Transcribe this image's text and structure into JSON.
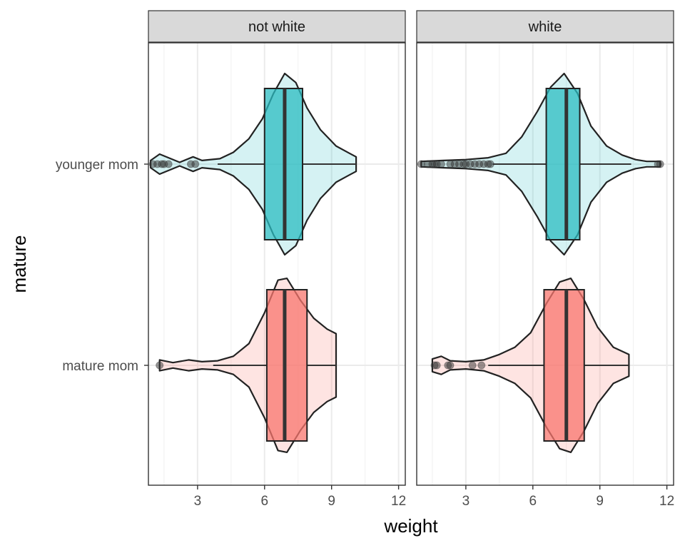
{
  "chart_data": {
    "type": "violin",
    "overlay": [
      "boxplot",
      "points"
    ],
    "facets": [
      "not white",
      "white"
    ],
    "xlabel": "weight",
    "ylabel": "mature",
    "categories": [
      "younger mom",
      "mature mom"
    ],
    "xlim": [
      0.8,
      12.3
    ],
    "xticks": [
      3,
      6,
      9,
      12
    ],
    "grid": true,
    "theme": "bw",
    "colors": {
      "younger mom": "#2bbcc2",
      "mature mom": "#f8766d"
    },
    "groups": [
      {
        "facet": "not white",
        "category": "younger mom",
        "box": {
          "whisker_low": 3.9,
          "q1": 6.0,
          "median": 6.9,
          "q3": 7.7,
          "whisker_high": 10.1
        },
        "outliers": [
          1.0,
          1.2,
          1.4,
          1.5,
          1.7,
          2.7,
          2.9
        ],
        "density": [
          [
            0.9,
            0.04
          ],
          [
            1.3,
            0.11
          ],
          [
            1.8,
            0.06
          ],
          [
            2.2,
            0.02
          ],
          [
            2.8,
            0.08
          ],
          [
            3.2,
            0.04
          ],
          [
            4.0,
            0.06
          ],
          [
            4.6,
            0.13
          ],
          [
            5.3,
            0.28
          ],
          [
            5.9,
            0.5
          ],
          [
            6.4,
            0.78
          ],
          [
            6.9,
            1.0
          ],
          [
            7.4,
            0.9
          ],
          [
            7.9,
            0.62
          ],
          [
            8.5,
            0.38
          ],
          [
            9.2,
            0.2
          ],
          [
            9.8,
            0.12
          ],
          [
            10.1,
            0.08
          ]
        ]
      },
      {
        "facet": "not white",
        "category": "mature mom",
        "box": {
          "whisker_low": 3.7,
          "q1": 6.1,
          "median": 6.9,
          "q3": 7.9,
          "whisker_high": 9.2
        },
        "outliers": [
          1.3
        ],
        "density": [
          [
            1.3,
            0.06
          ],
          [
            1.9,
            0.03
          ],
          [
            2.6,
            0.06
          ],
          [
            3.2,
            0.04
          ],
          [
            3.9,
            0.05
          ],
          [
            4.6,
            0.1
          ],
          [
            5.3,
            0.24
          ],
          [
            6.0,
            0.58
          ],
          [
            6.6,
            0.94
          ],
          [
            7.0,
            0.96
          ],
          [
            7.6,
            0.72
          ],
          [
            8.2,
            0.52
          ],
          [
            8.8,
            0.4
          ],
          [
            9.2,
            0.35
          ]
        ]
      },
      {
        "facet": "white",
        "category": "younger mom",
        "box": {
          "whisker_low": 4.2,
          "q1": 6.6,
          "median": 7.5,
          "q3": 8.1,
          "whisker_high": 10.4
        },
        "outliers": [
          1.0,
          1.3,
          1.5,
          1.6,
          1.7,
          1.9,
          2.3,
          2.5,
          2.7,
          2.9,
          3.0,
          3.2,
          3.4,
          3.6,
          3.8,
          4.0,
          4.1,
          11.6,
          11.7
        ],
        "density": [
          [
            1.0,
            0.03
          ],
          [
            2.0,
            0.04
          ],
          [
            3.0,
            0.05
          ],
          [
            4.0,
            0.07
          ],
          [
            4.8,
            0.12
          ],
          [
            5.5,
            0.3
          ],
          [
            6.2,
            0.58
          ],
          [
            6.8,
            0.85
          ],
          [
            7.4,
            1.0
          ],
          [
            8.0,
            0.78
          ],
          [
            8.6,
            0.42
          ],
          [
            9.3,
            0.2
          ],
          [
            10.0,
            0.1
          ],
          [
            10.6,
            0.05
          ],
          [
            11.1,
            0.03
          ],
          [
            11.7,
            0.03
          ]
        ]
      },
      {
        "facet": "white",
        "category": "mature mom",
        "box": {
          "whisker_low": 4.0,
          "q1": 6.5,
          "median": 7.5,
          "q3": 8.3,
          "whisker_high": 10.3
        },
        "outliers": [
          1.6,
          1.7,
          2.2,
          2.3,
          3.3,
          3.7
        ],
        "density": [
          [
            1.5,
            0.07
          ],
          [
            1.9,
            0.1
          ],
          [
            2.3,
            0.05
          ],
          [
            3.0,
            0.04
          ],
          [
            3.8,
            0.06
          ],
          [
            4.5,
            0.12
          ],
          [
            5.2,
            0.2
          ],
          [
            5.9,
            0.36
          ],
          [
            6.6,
            0.68
          ],
          [
            7.2,
            0.92
          ],
          [
            7.7,
            0.96
          ],
          [
            8.3,
            0.72
          ],
          [
            8.9,
            0.42
          ],
          [
            9.6,
            0.2
          ],
          [
            10.3,
            0.12
          ]
        ]
      }
    ]
  }
}
